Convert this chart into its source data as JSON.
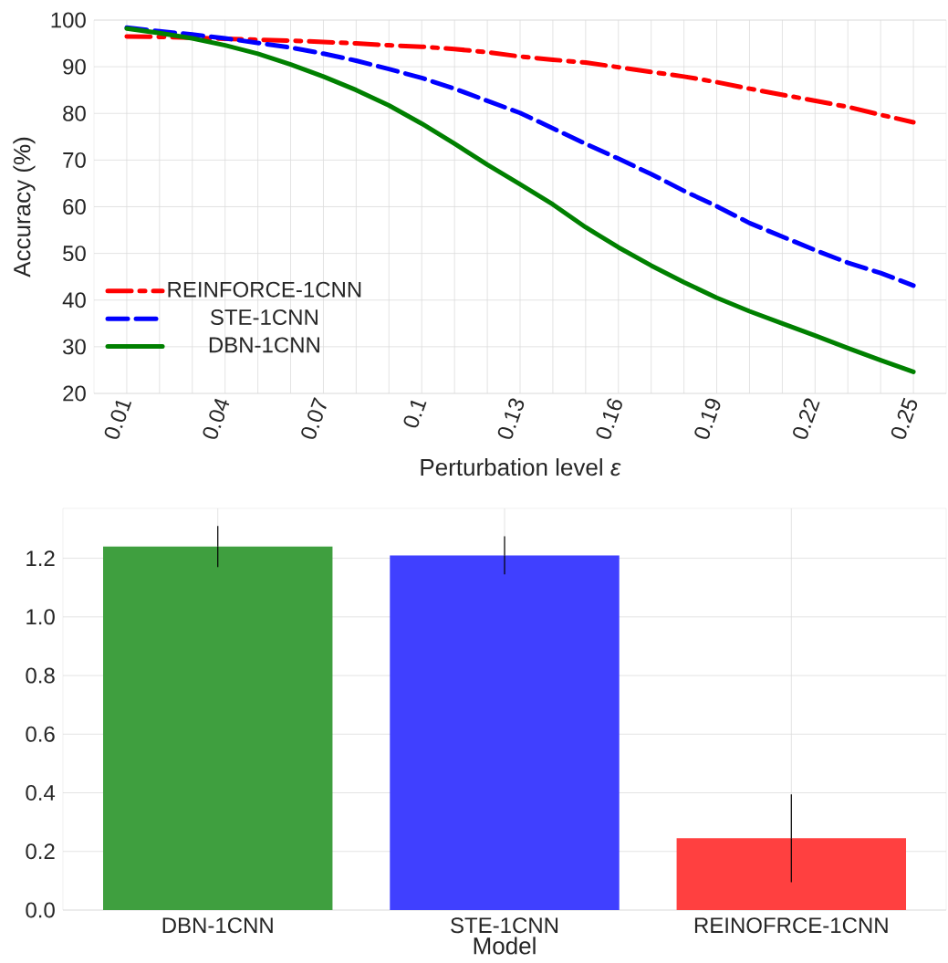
{
  "chart_data": [
    {
      "type": "line",
      "xlabel": "Perturbation level *ε*",
      "ylabel": "Accuracy (%)",
      "x": [
        0.01,
        0.02,
        0.03,
        0.04,
        0.05,
        0.06,
        0.07,
        0.08,
        0.09,
        0.1,
        0.11,
        0.12,
        0.13,
        0.14,
        0.15,
        0.16,
        0.17,
        0.18,
        0.19,
        0.2,
        0.21,
        0.22,
        0.23,
        0.24,
        0.25
      ],
      "series": [
        {
          "name": "REINFORCE-1CNN",
          "color": "#ff0000",
          "line_style": "dashdot",
          "values": [
            96.5,
            96.4,
            96.2,
            96.0,
            95.8,
            95.6,
            95.3,
            95.0,
            94.6,
            94.3,
            93.8,
            93.1,
            92.2,
            91.5,
            90.9,
            89.9,
            88.9,
            87.9,
            86.7,
            85.3,
            84.0,
            82.7,
            81.4,
            79.7,
            78.1
          ]
        },
        {
          "name": "STE-1CNN",
          "color": "#0000ff",
          "line_style": "dashed",
          "values": [
            98.4,
            97.6,
            96.9,
            96.1,
            95.1,
            94.1,
            92.8,
            91.3,
            89.5,
            87.6,
            85.3,
            82.7,
            80.1,
            76.8,
            73.5,
            70.3,
            67.0,
            63.4,
            60.1,
            56.5,
            53.6,
            50.7,
            48.0,
            45.8,
            43.1
          ]
        },
        {
          "name": "DBN-1CNN",
          "color": "#008000",
          "line_style": "solid",
          "values": [
            98.2,
            97.2,
            96.1,
            94.6,
            92.8,
            90.5,
            87.9,
            85.0,
            81.7,
            77.8,
            73.5,
            69.0,
            64.8,
            60.5,
            55.6,
            51.3,
            47.4,
            43.8,
            40.5,
            37.6,
            35.0,
            32.4,
            29.7,
            27.1,
            24.6
          ]
        }
      ],
      "xlim": [
        0,
        0.26
      ],
      "ylim": [
        20,
        100
      ],
      "xticks": [
        0.01,
        {
          "value": 0.02,
          "label": null
        },
        {
          "value": 0.03,
          "label": null
        },
        0.04,
        {
          "value": 0.05,
          "label": null
        },
        {
          "value": 0.06,
          "label": null
        },
        0.07,
        {
          "value": 0.08,
          "label": null
        },
        {
          "value": 0.09,
          "label": null
        },
        0.1,
        {
          "value": 0.11,
          "label": null
        },
        {
          "value": 0.12,
          "label": null
        },
        0.13,
        {
          "value": 0.14,
          "label": null
        },
        {
          "value": 0.15,
          "label": null
        },
        0.16,
        {
          "value": 0.17,
          "label": null
        },
        {
          "value": 0.18,
          "label": null
        },
        0.19,
        {
          "value": 0.2,
          "label": null
        },
        {
          "value": 0.21,
          "label": null
        },
        0.22,
        {
          "value": 0.23,
          "label": null
        },
        {
          "value": 0.24,
          "label": null
        },
        0.25
      ],
      "yticks": [
        20,
        30,
        40,
        50,
        60,
        70,
        80,
        90,
        100
      ],
      "grid": true,
      "legend": "left",
      "marker": "none"
    },
    {
      "type": "bar",
      "xlabel": "Model",
      "categories": [
        "DBN-1CNN",
        "STE-1CNN",
        "REINOFRCE-1CNN"
      ],
      "values": [
        1.24,
        1.21,
        0.245
      ],
      "errors": [
        0.07,
        0.065,
        0.15
      ],
      "colors": [
        "#3f9f3f",
        "#4040ff",
        "#ff4040"
      ],
      "ylim": [
        0,
        1.37
      ],
      "yticks": [
        {
          "value": 0,
          "label": "0.0"
        },
        0.2,
        0.4,
        0.6,
        0.8,
        {
          "value": 1,
          "label": "1.0"
        },
        1.2
      ],
      "grid": true
    }
  ]
}
